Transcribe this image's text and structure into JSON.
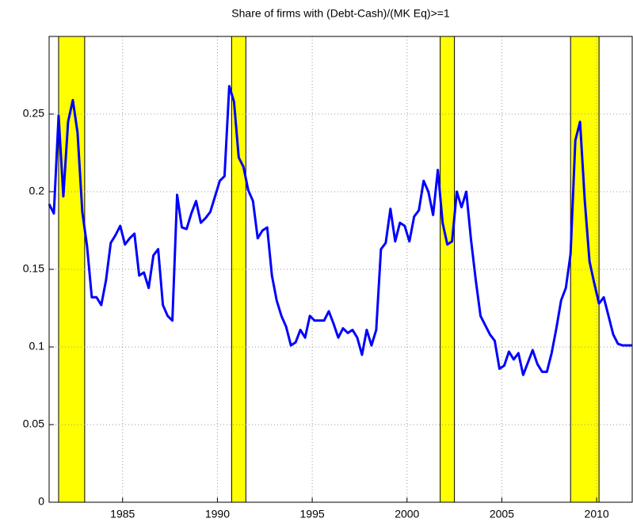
{
  "chart_data": {
    "type": "line",
    "title": "Share of firms with (Debt-Cash)/(MK Eq)>=1",
    "x": [
      1981.125,
      1981.375,
      1981.625,
      1981.875,
      1982.125,
      1982.375,
      1982.625,
      1982.875,
      1983.125,
      1983.375,
      1983.625,
      1983.875,
      1984.125,
      1984.375,
      1984.625,
      1984.875,
      1985.125,
      1985.375,
      1985.625,
      1985.875,
      1986.125,
      1986.375,
      1986.625,
      1986.875,
      1987.125,
      1987.375,
      1987.625,
      1987.875,
      1988.125,
      1988.375,
      1988.625,
      1988.875,
      1989.125,
      1989.375,
      1989.625,
      1989.875,
      1990.125,
      1990.375,
      1990.625,
      1990.875,
      1991.125,
      1991.375,
      1991.625,
      1991.875,
      1992.125,
      1992.375,
      1992.625,
      1992.875,
      1993.125,
      1993.375,
      1993.625,
      1993.875,
      1994.125,
      1994.375,
      1994.625,
      1994.875,
      1995.125,
      1995.375,
      1995.625,
      1995.875,
      1996.125,
      1996.375,
      1996.625,
      1996.875,
      1997.125,
      1997.375,
      1997.625,
      1997.875,
      1998.125,
      1998.375,
      1998.625,
      1998.875,
      1999.125,
      1999.375,
      1999.625,
      1999.875,
      2000.125,
      2000.375,
      2000.625,
      2000.875,
      2001.125,
      2001.375,
      2001.625,
      2001.875,
      2002.125,
      2002.375,
      2002.625,
      2002.875,
      2003.125,
      2003.375,
      2003.625,
      2003.875,
      2004.125,
      2004.375,
      2004.625,
      2004.875,
      2005.125,
      2005.375,
      2005.625,
      2005.875,
      2006.125,
      2006.375,
      2006.625,
      2006.875,
      2007.125,
      2007.375,
      2007.625,
      2007.875,
      2008.125,
      2008.375,
      2008.625,
      2008.875,
      2009.125,
      2009.375,
      2009.625,
      2009.875,
      2010.125,
      2010.375,
      2010.625,
      2010.875,
      2011.125,
      2011.375,
      2011.625,
      2011.875
    ],
    "series": [
      {
        "color": "#0000ff",
        "values": [
          0.192,
          0.186,
          0.249,
          0.197,
          0.245,
          0.259,
          0.238,
          0.187,
          0.165,
          0.132,
          0.132,
          0.127,
          0.143,
          0.167,
          0.172,
          0.178,
          0.166,
          0.17,
          0.173,
          0.146,
          0.148,
          0.138,
          0.159,
          0.163,
          0.127,
          0.12,
          0.117,
          0.198,
          0.177,
          0.176,
          0.186,
          0.194,
          0.18,
          0.183,
          0.187,
          0.197,
          0.207,
          0.21,
          0.268,
          0.258,
          0.222,
          0.216,
          0.201,
          0.194,
          0.17,
          0.175,
          0.177,
          0.146,
          0.13,
          0.12,
          0.113,
          0.101,
          0.103,
          0.111,
          0.106,
          0.12,
          0.117,
          0.117,
          0.117,
          0.123,
          0.115,
          0.106,
          0.112,
          0.109,
          0.111,
          0.106,
          0.095,
          0.111,
          0.101,
          0.111,
          0.163,
          0.167,
          0.189,
          0.168,
          0.18,
          0.178,
          0.168,
          0.184,
          0.188,
          0.207,
          0.2,
          0.185,
          0.214,
          0.18,
          0.166,
          0.168,
          0.2,
          0.19,
          0.2,
          0.169,
          0.143,
          0.12,
          0.114,
          0.108,
          0.104,
          0.086,
          0.088,
          0.097,
          0.092,
          0.096,
          0.082,
          0.09,
          0.098,
          0.089,
          0.084,
          0.084,
          0.096,
          0.112,
          0.13,
          0.138,
          0.16,
          0.233,
          0.245,
          0.194,
          0.155,
          0.141,
          0.128,
          0.132,
          0.12,
          0.108,
          0.102,
          0.101,
          0.101,
          0.101
        ]
      }
    ],
    "shaded_periods": [
      [
        1981.625,
        1983.0
      ],
      [
        1990.75,
        1991.5
      ],
      [
        2001.75,
        2002.5
      ],
      [
        2008.625,
        2010.125
      ]
    ],
    "shade_color": "#ffff00",
    "xlim": [
      1981.125,
      2011.875
    ],
    "xticks": [
      1985,
      1990,
      1995,
      2000,
      2005,
      2010
    ],
    "ylim": [
      0,
      0.3
    ],
    "yticks": [
      0,
      0.05,
      0.1,
      0.15,
      0.2,
      0.25
    ],
    "grid": true
  }
}
